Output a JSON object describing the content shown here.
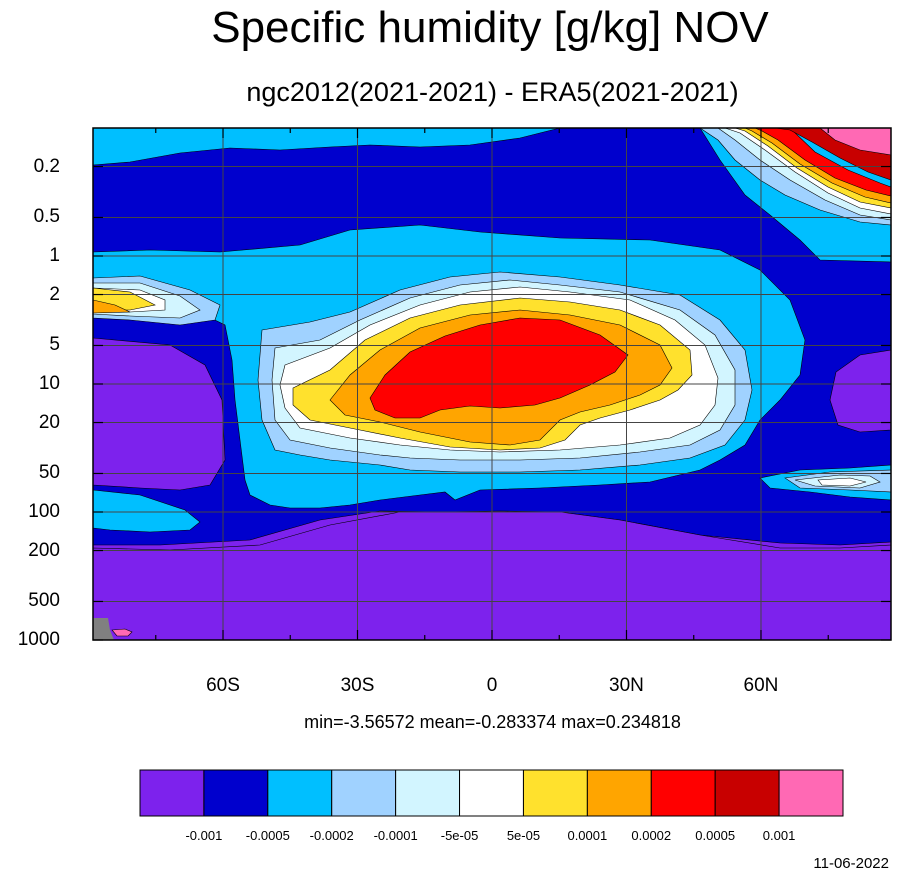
{
  "chart_data": {
    "type": "heatmap",
    "subtype": "filled-contour",
    "title": "Specific humidity [g/kg] NOV",
    "subtitle": "ngc2012(2021-2021) - ERA5(2021-2021)",
    "xlabel": "",
    "ylabel": "",
    "x_ticks": [
      "60S",
      "30S",
      "0",
      "30N",
      "60N"
    ],
    "x_tick_values": [
      -60,
      -30,
      0,
      30,
      60
    ],
    "xlim": [
      -89,
      89
    ],
    "y_scale": "log",
    "y_ticks": [
      "0.2",
      "0.5",
      "1",
      "2",
      "5",
      "10",
      "20",
      "50",
      "100",
      "200",
      "500",
      "1000"
    ],
    "y_tick_values": [
      0.2,
      0.5,
      1,
      2,
      5,
      10,
      20,
      50,
      100,
      200,
      500,
      1000
    ],
    "ylim": [
      1000,
      0.1
    ],
    "grid": true,
    "stats": {
      "min": "-3.56572",
      "mean": "-0.283374",
      "max": "0.234818"
    },
    "stats_text": "min=-3.56572   mean=-0.283374   max=0.234818",
    "colorbar": {
      "orientation": "horizontal",
      "placement": "bottom",
      "colors": [
        "#7d22ed",
        "#0000cd",
        "#00bfff",
        "#a0d2ff",
        "#d2f5ff",
        "#ffffff",
        "#ffe12d",
        "#ffa500",
        "#ff0000",
        "#c80000",
        "#ff69b4"
      ],
      "labels": [
        "-0.001",
        "-0.0005",
        "-0.0002",
        "-0.0001",
        "-5e-05",
        "5e-05",
        "0.0001",
        "0.0002",
        "0.0005",
        "0.001"
      ]
    },
    "missing_color": "#808080"
  },
  "date": "11-06-2022"
}
